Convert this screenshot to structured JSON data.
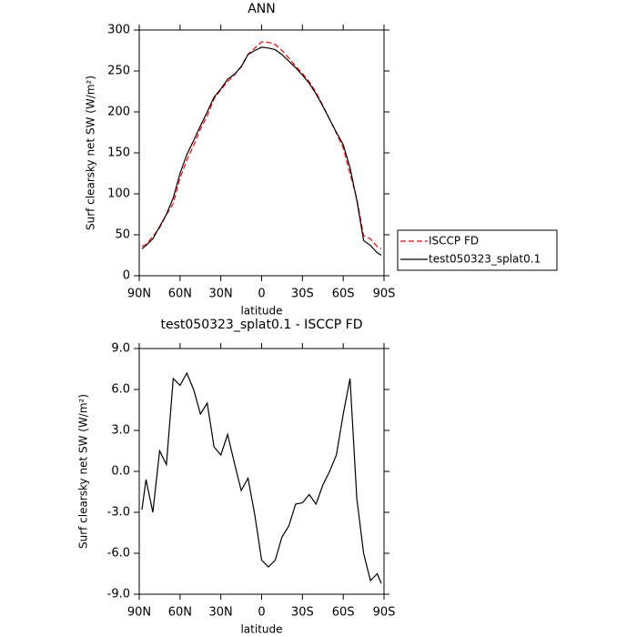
{
  "chart_data": [
    {
      "type": "line",
      "title": "ANN",
      "x_label": "latitude",
      "y_label": "Surf clearsky net SW (W/m²)",
      "x": [
        88,
        85,
        80,
        75,
        70,
        65,
        60,
        55,
        50,
        45,
        40,
        35,
        30,
        25,
        20,
        15,
        10,
        5,
        0,
        -5,
        -10,
        -15,
        -20,
        -25,
        -30,
        -35,
        -40,
        -45,
        -50,
        -55,
        -60,
        -65,
        -70,
        -75,
        -80,
        -85,
        -88
      ],
      "xlim": [
        90,
        -90
      ],
      "xticks": [
        {
          "value": 90,
          "label": "90N"
        },
        {
          "value": 60,
          "label": "60N"
        },
        {
          "value": 30,
          "label": "30N"
        },
        0,
        {
          "value": -30,
          "label": "30S"
        },
        {
          "value": -60,
          "label": "60S"
        },
        {
          "value": -90,
          "label": "90S"
        }
      ],
      "ylim": [
        0,
        300
      ],
      "yticks": [
        0,
        50,
        100,
        150,
        200,
        250,
        300
      ],
      "legend": "right",
      "series": [
        {
          "name": "ISCCP FD",
          "color": "#ff0000",
          "linestyle": "dashed",
          "values": [
            36,
            38,
            48,
            58.5,
            74.5,
            88,
            119,
            141,
            159,
            179,
            195,
            216,
            227,
            237,
            245,
            256,
            270.5,
            278,
            285.5,
            285,
            282.5,
            275,
            266,
            256,
            247,
            237,
            224,
            208,
            191,
            174,
            156,
            125,
            94,
            49,
            45,
            35.5,
            33
          ]
        },
        {
          "name": "test050323_splat0.1",
          "color": "#000000",
          "linestyle": "solid",
          "values": [
            33,
            37,
            45,
            60,
            75,
            95,
            125,
            148,
            165,
            183,
            200,
            218,
            228,
            240,
            246,
            255,
            270,
            275,
            279,
            278,
            276,
            270,
            262,
            254,
            245,
            235,
            222,
            207,
            191,
            175,
            160,
            132,
            92,
            43,
            37,
            28,
            25
          ]
        }
      ]
    },
    {
      "type": "line",
      "title": "test050323_splat0.1 - ISCCP FD",
      "x_label": "latitude",
      "y_label": "Surf clearsky net SW (W/m²)",
      "x": [
        88,
        85,
        80,
        75,
        70,
        65,
        60,
        55,
        50,
        45,
        40,
        35,
        30,
        25,
        20,
        15,
        10,
        5,
        0,
        -5,
        -10,
        -15,
        -20,
        -25,
        -30,
        -35,
        -40,
        -45,
        -50,
        -55,
        -60,
        -65,
        -70,
        -75,
        -80,
        -85,
        -88
      ],
      "xlim": [
        90,
        -90
      ],
      "xticks": [
        {
          "value": 90,
          "label": "90N"
        },
        {
          "value": 60,
          "label": "60N"
        },
        {
          "value": 30,
          "label": "30N"
        },
        0,
        {
          "value": -30,
          "label": "30S"
        },
        {
          "value": -60,
          "label": "60S"
        },
        {
          "value": -90,
          "label": "90S"
        }
      ],
      "ylim": [
        -9,
        9
      ],
      "yticks": [
        {
          "value": -9,
          "label": "-9.0"
        },
        {
          "value": -6,
          "label": "-6.0"
        },
        {
          "value": -3,
          "label": "-3.0"
        },
        {
          "value": 0,
          "label": "0.0"
        },
        {
          "value": 3,
          "label": "3.0"
        },
        {
          "value": 6,
          "label": "6.0"
        },
        {
          "value": 9,
          "label": "9.0"
        }
      ],
      "series": [
        {
          "color": "#000000",
          "linestyle": "solid",
          "values": [
            -2.8,
            -0.6,
            -3,
            1.5,
            0.5,
            6.8,
            6.3,
            7.2,
            6,
            4.2,
            5,
            1.8,
            1.2,
            2.7,
            0.6,
            -1.4,
            -0.5,
            -3.2,
            -6.5,
            -7,
            -6.5,
            -4.8,
            -4,
            -2.4,
            -2.3,
            -1.7,
            -2.4,
            -1,
            0,
            1.2,
            4.2,
            6.8,
            -2,
            -6,
            -8,
            -7.5,
            -8.2
          ]
        }
      ]
    }
  ]
}
